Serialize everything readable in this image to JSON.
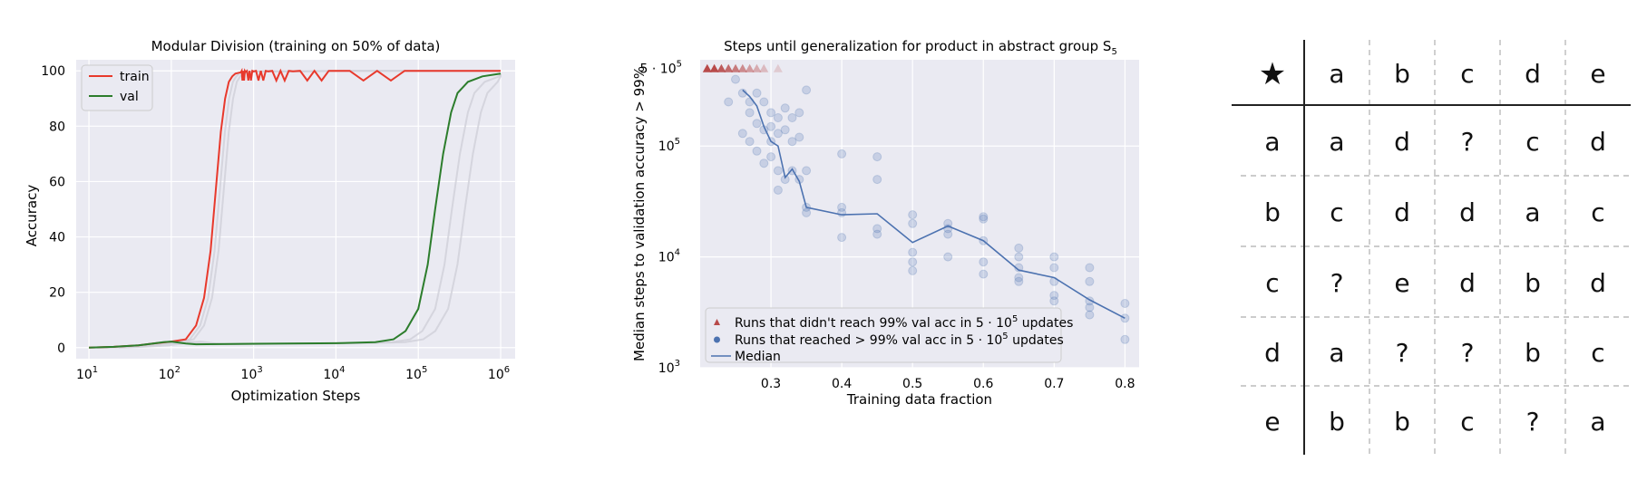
{
  "chart_data": [
    {
      "type": "line",
      "title": "Modular Division (training on 50% of data)",
      "xlabel": "Optimization Steps",
      "ylabel": "Accuracy",
      "xscale": "log",
      "xlim": [
        10,
        1000000
      ],
      "ylim": [
        0,
        100
      ],
      "xticks": [
        "10",
        "10",
        "10",
        "10",
        "10",
        "10"
      ],
      "xtick_exps": [
        "1",
        "2",
        "3",
        "4",
        "5",
        "6"
      ],
      "yticks": [
        "0",
        "20",
        "40",
        "60",
        "80",
        "100"
      ],
      "legend": "top-left",
      "series": [
        {
          "name": "train",
          "color": "#e8392c",
          "x": [
            10,
            20,
            40,
            60,
            100,
            150,
            200,
            250,
            300,
            350,
            400,
            450,
            500,
            550,
            600,
            700,
            800,
            1000,
            1500,
            3000,
            10000,
            100000,
            1000000
          ],
          "y": [
            0,
            0.3,
            0.8,
            1.5,
            2.2,
            3,
            8,
            18,
            35,
            58,
            78,
            90,
            96,
            98,
            99,
            99.5,
            99.6,
            99.8,
            99.8,
            99.8,
            100,
            100,
            100
          ]
        },
        {
          "name": "val",
          "color": "#2c7d2c",
          "x": [
            10,
            20,
            40,
            60,
            80,
            100,
            150,
            200,
            500,
            1000,
            10000,
            30000,
            50000,
            70000,
            100000,
            130000,
            160000,
            200000,
            250000,
            300000,
            400000,
            600000,
            1000000
          ],
          "y": [
            0,
            0.3,
            0.8,
            1.5,
            2,
            2.2,
            1.5,
            1.2,
            1.3,
            1.4,
            1.6,
            2,
            3,
            6,
            14,
            30,
            50,
            70,
            85,
            92,
            96,
            98,
            99
          ]
        }
      ]
    },
    {
      "type": "scatter",
      "title": "Steps until generalization for product in abstract group S",
      "title_sub": "5",
      "xlabel": "Training data fraction",
      "ylabel": "Median steps to validation accuracy > 99%",
      "yscale": "log",
      "xlim": [
        0.2,
        0.82
      ],
      "ylim": [
        1000,
        600000
      ],
      "xticks": [
        "0.3",
        "0.4",
        "0.5",
        "0.6",
        "0.7",
        "0.8"
      ],
      "ytick_base": "10",
      "ytick_exps": [
        "3",
        "4",
        "5"
      ],
      "ytick_top": "5 · 10",
      "ytick_top_exp": "5",
      "legend": "lower-left",
      "legend_entries": [
        "Runs that didn't reach 99% val acc in 5 · 10",
        "Runs that reached > 99% val acc in 5 · 10",
        "Median"
      ],
      "legend_suffix_exp": "5",
      "legend_suffix": " updates",
      "colors": {
        "triangle": "#b84a4a",
        "point": "#4c72b0",
        "median": "#4c72b0"
      },
      "failed_runs": {
        "x": [
          0.21,
          0.22,
          0.23,
          0.24,
          0.25,
          0.26,
          0.27,
          0.28,
          0.29,
          0.31
        ],
        "alpha": [
          1,
          1,
          0.9,
          0.8,
          0.7,
          0.6,
          0.5,
          0.4,
          0.3,
          0.2
        ]
      },
      "points": {
        "x": [
          0.24,
          0.25,
          0.26,
          0.26,
          0.27,
          0.27,
          0.27,
          0.28,
          0.28,
          0.28,
          0.29,
          0.29,
          0.29,
          0.3,
          0.3,
          0.3,
          0.3,
          0.31,
          0.31,
          0.31,
          0.31,
          0.32,
          0.32,
          0.32,
          0.33,
          0.33,
          0.33,
          0.34,
          0.34,
          0.34,
          0.35,
          0.35,
          0.35,
          0.35,
          0.4,
          0.4,
          0.4,
          0.4,
          0.45,
          0.45,
          0.45,
          0.45,
          0.5,
          0.5,
          0.5,
          0.5,
          0.5,
          0.55,
          0.55,
          0.55,
          0.55,
          0.6,
          0.6,
          0.6,
          0.6,
          0.6,
          0.65,
          0.65,
          0.65,
          0.65,
          0.65,
          0.7,
          0.7,
          0.7,
          0.7,
          0.7,
          0.75,
          0.75,
          0.75,
          0.75,
          0.75,
          0.8,
          0.8,
          0.8
        ],
        "y": [
          250000,
          400000,
          300000,
          130000,
          200000,
          250000,
          110000,
          300000,
          160000,
          90000,
          250000,
          70000,
          140000,
          200000,
          150000,
          110000,
          80000,
          180000,
          130000,
          60000,
          40000,
          220000,
          140000,
          50000,
          180000,
          110000,
          60000,
          200000,
          120000,
          50000,
          320000,
          60000,
          28000,
          25000,
          85000,
          28000,
          25000,
          15000,
          80000,
          50000,
          18000,
          16000,
          24000,
          20000,
          11000,
          9000,
          7500,
          20000,
          18000,
          16000,
          10000,
          23000,
          22000,
          14000,
          9000,
          7000,
          12000,
          10000,
          8000,
          6500,
          6000,
          10000,
          8000,
          6000,
          4500,
          4000,
          8000,
          6000,
          4000,
          3500,
          3000,
          3800,
          2800,
          1800
        ]
      },
      "median": {
        "x": [
          0.26,
          0.27,
          0.28,
          0.29,
          0.3,
          0.31,
          0.32,
          0.33,
          0.34,
          0.35,
          0.4,
          0.45,
          0.5,
          0.55,
          0.6,
          0.65,
          0.7,
          0.75,
          0.8
        ],
        "y": [
          320000,
          280000,
          230000,
          150000,
          110000,
          100000,
          52000,
          62000,
          48000,
          28000,
          24000,
          24500,
          13500,
          19000,
          14000,
          7600,
          6500,
          4100,
          2800
        ]
      }
    }
  ],
  "op_table": {
    "corner_symbol": "★",
    "col_headers": [
      "a",
      "b",
      "c",
      "d",
      "e"
    ],
    "rows": [
      {
        "header": "a",
        "cells": [
          "a",
          "d",
          "?",
          "c",
          "d"
        ]
      },
      {
        "header": "b",
        "cells": [
          "c",
          "d",
          "d",
          "a",
          "c"
        ]
      },
      {
        "header": "c",
        "cells": [
          "?",
          "e",
          "d",
          "b",
          "d"
        ]
      },
      {
        "header": "d",
        "cells": [
          "a",
          "?",
          "?",
          "b",
          "c"
        ]
      },
      {
        "header": "e",
        "cells": [
          "b",
          "b",
          "c",
          "?",
          "a"
        ]
      }
    ]
  }
}
